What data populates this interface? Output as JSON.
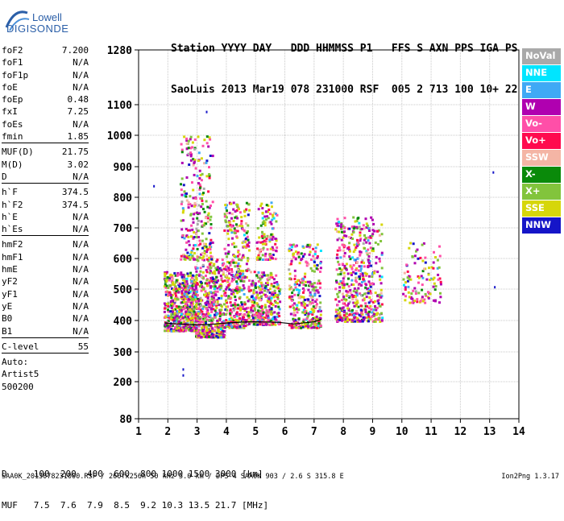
{
  "logo": {
    "line1": "Lowell",
    "line2": "DIGISONDE"
  },
  "header": {
    "line1": "Station YYYY DAY   DDD HHMMSS P1   FFS S AXN PPS IGA PS",
    "line2": "SaoLuis 2013 Mar19 078 231000 RSF  005 2 713 100 10+ 22"
  },
  "params": [
    {
      "name": "foF2",
      "value": "7.200"
    },
    {
      "name": "foF1",
      "value": "N/A"
    },
    {
      "name": "foF1p",
      "value": "N/A"
    },
    {
      "name": "foE",
      "value": "N/A"
    },
    {
      "name": "foEp",
      "value": "0.48"
    },
    {
      "name": "fxI",
      "value": "7.25"
    },
    {
      "name": "foEs",
      "value": "N/A"
    },
    {
      "name": "fmin",
      "value": "1.85"
    },
    {
      "sep": true
    },
    {
      "name": "MUF(D)",
      "value": "21.75"
    },
    {
      "name": "M(D)",
      "value": "3.02"
    },
    {
      "name": "D",
      "value": "N/A"
    },
    {
      "sep": true
    },
    {
      "name": "h`F",
      "value": "374.5"
    },
    {
      "name": "h`F2",
      "value": "374.5"
    },
    {
      "name": "h`E",
      "value": "N/A"
    },
    {
      "name": "h`Es",
      "value": "N/A"
    },
    {
      "sep": true
    },
    {
      "name": "hmF2",
      "value": "N/A"
    },
    {
      "name": "hmF1",
      "value": "N/A"
    },
    {
      "name": "hmE",
      "value": "N/A"
    },
    {
      "name": "yF2",
      "value": "N/A"
    },
    {
      "name": "yF1",
      "value": "N/A"
    },
    {
      "name": "yE",
      "value": "N/A"
    },
    {
      "name": "B0",
      "value": "N/A"
    },
    {
      "name": "B1",
      "value": "N/A"
    },
    {
      "sep": true
    },
    {
      "name": "C-level",
      "value": "55"
    },
    {
      "sep": true
    },
    {
      "text": "Auto:"
    },
    {
      "text": "Artist5"
    },
    {
      "text": "500200"
    }
  ],
  "legend": [
    {
      "label": "NoVal",
      "color": "#a9a9a9"
    },
    {
      "label": "NNE",
      "color": "#00e5ff"
    },
    {
      "label": "E",
      "color": "#3fa9f5"
    },
    {
      "label": "W",
      "color": "#b000b0"
    },
    {
      "label": "Vo-",
      "color": "#ff4fa8"
    },
    {
      "label": "Vo+",
      "color": "#ff0a4e"
    },
    {
      "label": "SSW",
      "color": "#f4b5a5"
    },
    {
      "label": "X-",
      "color": "#0a8a0a"
    },
    {
      "label": "X+",
      "color": "#82c43c"
    },
    {
      "label": "SSE",
      "color": "#d6d60a"
    },
    {
      "label": "NNW",
      "color": "#1515c8"
    }
  ],
  "chart_data": {
    "type": "scatter",
    "xlim": [
      1,
      14
    ],
    "ylim": [
      80,
      1280
    ],
    "x_ticks": [
      "1",
      "2",
      "3",
      "4",
      "5",
      "6",
      "7",
      "8",
      "9",
      "10",
      "11",
      "12",
      "13",
      "14"
    ],
    "y_ticks": [
      "80",
      "200",
      "300",
      "400",
      "500",
      "600",
      "700",
      "800",
      "900",
      "1000",
      "1100",
      "1280"
    ],
    "grid": true,
    "clusters": [
      {
        "x": [
          1.85,
          2.95
        ],
        "y": [
          370,
          560
        ],
        "n": 600
      },
      {
        "x": [
          2.9,
          3.9
        ],
        "y": [
          350,
          600
        ],
        "n": 500
      },
      {
        "x": [
          2.4,
          3.5
        ],
        "y": [
          600,
          1000
        ],
        "n": 260
      },
      {
        "x": [
          3.9,
          4.75
        ],
        "y": [
          380,
          790
        ],
        "n": 420
      },
      {
        "x": [
          4.8,
          5.8
        ],
        "y": [
          390,
          560
        ],
        "n": 300
      },
      {
        "x": [
          5.0,
          5.7
        ],
        "y": [
          600,
          790
        ],
        "n": 120
      },
      {
        "x": [
          6.1,
          7.2
        ],
        "y": [
          380,
          650
        ],
        "n": 330
      },
      {
        "x": [
          7.7,
          9.0
        ],
        "y": [
          400,
          740
        ],
        "n": 460
      },
      {
        "x": [
          9.0,
          9.3
        ],
        "y": [
          400,
          720
        ],
        "n": 70
      },
      {
        "x": [
          10.0,
          11.3
        ],
        "y": [
          460,
          660
        ],
        "n": 110
      }
    ],
    "trace": [
      [
        1.9,
        392
      ],
      [
        2.5,
        388
      ],
      [
        3.0,
        386
      ],
      [
        3.5,
        388
      ],
      [
        4.0,
        392
      ],
      [
        4.6,
        395
      ],
      [
        5.0,
        396
      ],
      [
        5.8,
        394
      ],
      [
        6.3,
        389
      ],
      [
        7.0,
        396
      ],
      [
        7.25,
        404
      ]
    ],
    "outliers": [
      [
        2.5,
        245
      ],
      [
        2.5,
        225
      ],
      [
        13.1,
        885
      ],
      [
        13.15,
        510
      ],
      [
        1.5,
        840
      ],
      [
        3.3,
        1080
      ]
    ]
  },
  "distance_table": {
    "d_line": "D     100  200  400  600  800 1000 1500 3000 [km]",
    "muf_line": "MUF   7.5  7.6  7.9  8.5  9.2 10.3 13.5 21.7 [MHz]"
  },
  "footer": {
    "left": "SAA0K_2013078231000.RSF / 260fx256h 50 kHz 5.0 km / DPS-4 SAA0K 903 / 2.6 S 315.8 E",
    "right": "Ion2Png 1.3.17"
  }
}
